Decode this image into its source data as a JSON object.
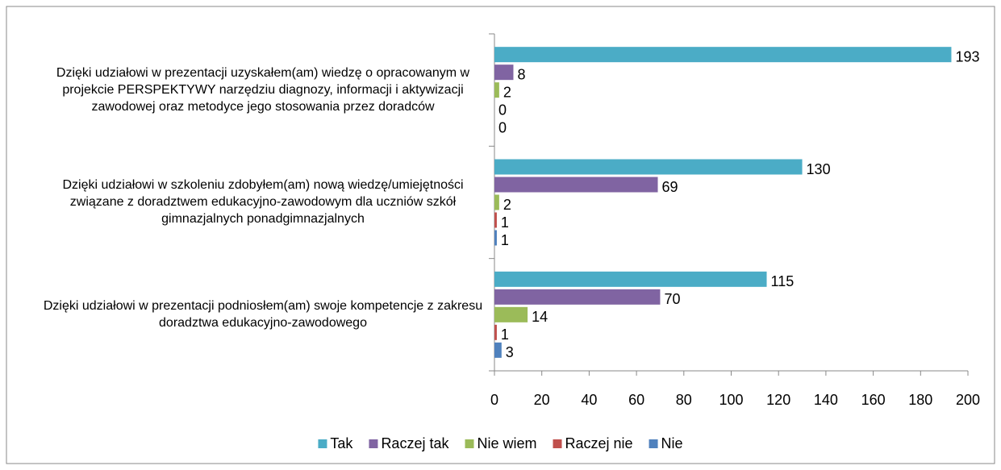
{
  "chart_data": {
    "type": "bar",
    "orientation": "horizontal",
    "categories": [
      "Dzięki udziałowi w prezentacji uzyskałem(am) wiedzę o opracowanym w projekcie PERSPEKTYWY narzędziu diagnozy, informacji i aktywizacji zawodowej oraz metodyce jego stosowania przez doradców",
      "Dzięki udziałowi w szkoleniu zdobyłem(am) nową wiedzę/umiejętności związane z doradztwem edukacyjno-zawodowym dla uczniów szkół gimnazjalnych ponadgimnazjalnych",
      "Dzięki udziałowi w prezentacji podniosłem(am) swoje kompetencje z zakresu doradztwa edukacyjno-zawodowego"
    ],
    "series": [
      {
        "name": "Tak",
        "color": "#4bacc6",
        "values": [
          193,
          130,
          115
        ]
      },
      {
        "name": "Raczej tak",
        "color": "#8064a2",
        "values": [
          8,
          69,
          70
        ]
      },
      {
        "name": "Nie wiem",
        "color": "#9bbb59",
        "values": [
          2,
          2,
          14
        ]
      },
      {
        "name": "Raczej nie",
        "color": "#c0504d",
        "values": [
          0,
          1,
          1
        ]
      },
      {
        "name": "Nie",
        "color": "#4f81bd",
        "values": [
          0,
          1,
          3
        ]
      }
    ],
    "xlim": [
      0,
      200
    ],
    "xticks": [
      0,
      20,
      40,
      60,
      80,
      100,
      120,
      140,
      160,
      180,
      200
    ],
    "data_labels": true,
    "legend": "bottom"
  }
}
